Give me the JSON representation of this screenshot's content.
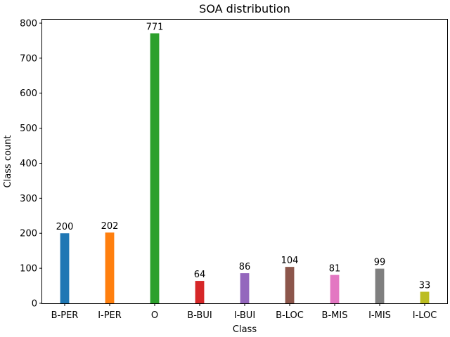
{
  "chart_data": {
    "type": "bar",
    "title": "SOA distribution",
    "xlabel": "Class",
    "ylabel": "Class count",
    "categories": [
      "B-PER",
      "I-PER",
      "O",
      "B-BUI",
      "I-BUI",
      "B-LOC",
      "B-MIS",
      "I-MIS",
      "I-LOC"
    ],
    "values": [
      200,
      202,
      771,
      64,
      86,
      104,
      81,
      99,
      33
    ],
    "colors": [
      "#1f77b4",
      "#ff7f0e",
      "#2ca02c",
      "#d62728",
      "#9467bd",
      "#8c564b",
      "#e377c2",
      "#7f7f7f",
      "#bcbd22"
    ],
    "ylim": [
      0,
      810
    ],
    "yticks": [
      0,
      100,
      200,
      300,
      400,
      500,
      600,
      700,
      800
    ],
    "grid": false,
    "legend": "none"
  }
}
